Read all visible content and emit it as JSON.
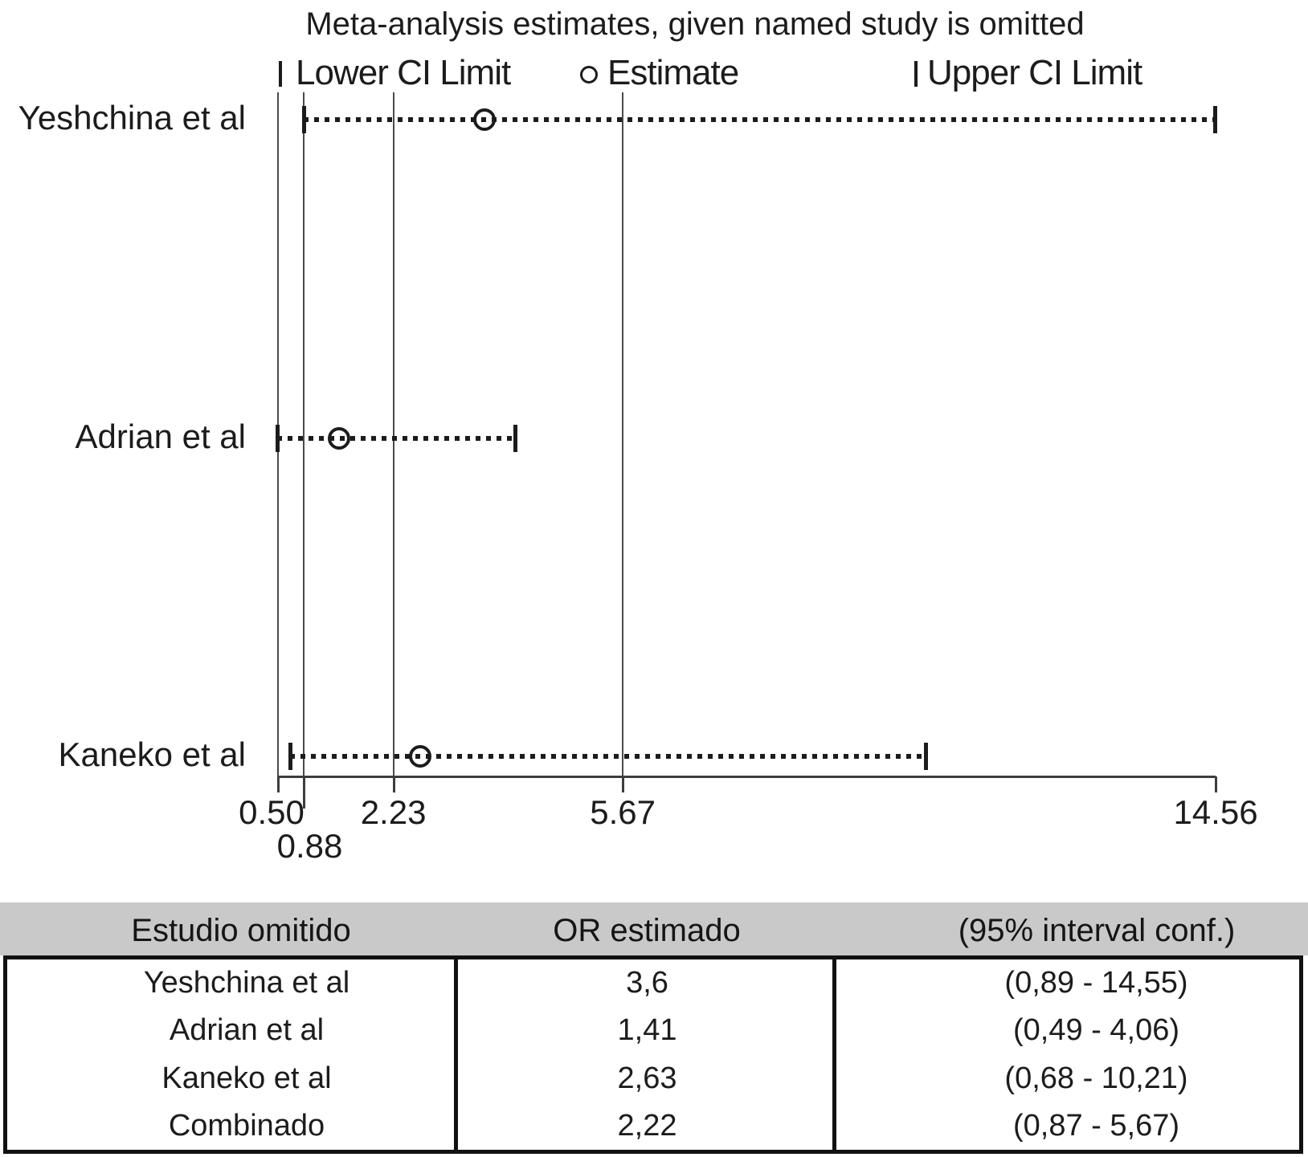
{
  "chart_data": {
    "type": "scatter",
    "subtype": "leave-one-out-meta-analysis-forest",
    "title": "Meta-analysis estimates, given named study is omitted",
    "legend": [
      {
        "marker": "bar",
        "label": "Lower CI Limit"
      },
      {
        "marker": "circle",
        "label": "Estimate"
      },
      {
        "marker": "bar",
        "label": "Upper CI Limit"
      }
    ],
    "legend_position": "top",
    "x_axis": {
      "scale": "linear",
      "min": 0.5,
      "max": 14.56,
      "tick_labels_row1": [
        "0.50",
        "2.23",
        "5.67",
        "14.56"
      ],
      "tick_values_row1": [
        0.5,
        2.23,
        5.67,
        14.56
      ],
      "tick_labels_row2": [
        "0.88"
      ],
      "tick_values_row2": [
        0.88
      ],
      "gridline_values": [
        0.5,
        0.88,
        2.23,
        5.67
      ]
    },
    "studies": [
      {
        "label": "Yeshchina et al",
        "estimate": 3.6,
        "lower_ci": 0.89,
        "upper_ci": 14.55
      },
      {
        "label": "Adrian et al",
        "estimate": 1.41,
        "lower_ci": 0.49,
        "upper_ci": 4.06
      },
      {
        "label": "Kaneko et al",
        "estimate": 2.63,
        "lower_ci": 0.68,
        "upper_ci": 10.21
      }
    ]
  },
  "table": {
    "headers": [
      "Estudio omitido",
      "OR estimado",
      "(95% interval conf.)"
    ],
    "rows": [
      {
        "study": "Yeshchina et al",
        "or": "3,6",
        "ci": "(0,89 - 14,55)"
      },
      {
        "study": "Adrian et al",
        "or": "1,41",
        "ci": "(0,49 - 4,06)"
      },
      {
        "study": "Kaneko et al",
        "or": "2,63",
        "ci": "(0,68 - 10,21)"
      },
      {
        "study": "Combinado",
        "or": "2,22",
        "ci": "(0,87 - 5,67)"
      }
    ]
  },
  "colors": {
    "header_bg": "#c9c9c9",
    "ink": "#1c1c1c",
    "gridline": "#4a4a4a"
  }
}
